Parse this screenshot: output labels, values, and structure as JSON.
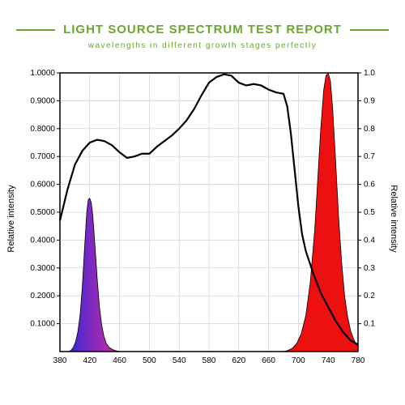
{
  "header": {
    "title": "LIGHT SOURCE SPECTRUM TEST REPORT",
    "subtitle": "wavelengths in different growth stages perfectly",
    "title_color": "#6aa62f",
    "subtitle_color": "#6aa62f",
    "rule_color": "#6aa62f",
    "title_fontsize": 15,
    "subtitle_fontsize": 10
  },
  "chart": {
    "type": "line+area",
    "background_color": "#ffffff",
    "border_color": "#000000",
    "grid_color": "#c7c7c7",
    "grid_width": 0.6,
    "axis_font_size": 10,
    "x": {
      "min": 380,
      "max": 780,
      "ticks": [
        380,
        420,
        460,
        500,
        540,
        580,
        620,
        660,
        700,
        740,
        780
      ]
    },
    "y_left": {
      "label": "Relative intensity",
      "min": 0,
      "max": 1,
      "ticks": [
        0.1,
        0.2,
        0.3,
        0.4,
        0.5,
        0.6,
        0.7,
        0.8,
        0.9,
        1.0
      ],
      "tick_labels": [
        "0.1000",
        "0.2000",
        "0.3000",
        "0.4000",
        "0.5000",
        "0.6000",
        "0.7000",
        "0.8000",
        "0.9000",
        "1.0000"
      ]
    },
    "y_right": {
      "label": "Relative intensity",
      "min": 0,
      "max": 1,
      "ticks": [
        0.1,
        0.2,
        0.3,
        0.4,
        0.5,
        0.6,
        0.7,
        0.8,
        0.9,
        1.0
      ],
      "tick_labels": [
        "0.1",
        "0.2",
        "0.3",
        "0.4",
        "0.5",
        "0.6",
        "0.7",
        "0.8",
        "0.9",
        "1.0"
      ]
    },
    "broad_curve": {
      "color": "#000000",
      "width": 2.2,
      "points": [
        [
          380,
          0.47
        ],
        [
          390,
          0.58
        ],
        [
          400,
          0.67
        ],
        [
          410,
          0.72
        ],
        [
          420,
          0.75
        ],
        [
          430,
          0.76
        ],
        [
          440,
          0.755
        ],
        [
          450,
          0.74
        ],
        [
          460,
          0.715
        ],
        [
          470,
          0.695
        ],
        [
          480,
          0.7
        ],
        [
          490,
          0.71
        ],
        [
          500,
          0.71
        ],
        [
          510,
          0.735
        ],
        [
          520,
          0.755
        ],
        [
          530,
          0.775
        ],
        [
          540,
          0.8
        ],
        [
          550,
          0.83
        ],
        [
          560,
          0.87
        ],
        [
          570,
          0.92
        ],
        [
          580,
          0.965
        ],
        [
          590,
          0.985
        ],
        [
          600,
          0.995
        ],
        [
          610,
          0.99
        ],
        [
          620,
          0.965
        ],
        [
          630,
          0.955
        ],
        [
          640,
          0.96
        ],
        [
          650,
          0.955
        ],
        [
          660,
          0.94
        ],
        [
          670,
          0.93
        ],
        [
          680,
          0.925
        ],
        [
          685,
          0.88
        ],
        [
          690,
          0.78
        ],
        [
          695,
          0.65
        ],
        [
          700,
          0.52
        ],
        [
          705,
          0.42
        ],
        [
          710,
          0.36
        ],
        [
          720,
          0.28
        ],
        [
          730,
          0.21
        ],
        [
          740,
          0.16
        ],
        [
          750,
          0.11
        ],
        [
          760,
          0.07
        ],
        [
          770,
          0.04
        ],
        [
          780,
          0.025
        ]
      ]
    },
    "violet_peak": {
      "fill_gradient": {
        "from": "#3a2ad6",
        "to": "#d42aa0",
        "angle": 90
      },
      "stroke": "#000000",
      "stroke_width": 0.8,
      "points": [
        [
          392,
          0.0
        ],
        [
          395,
          0.005
        ],
        [
          398,
          0.015
        ],
        [
          401,
          0.035
        ],
        [
          404,
          0.07
        ],
        [
          407,
          0.13
        ],
        [
          410,
          0.23
        ],
        [
          413,
          0.37
        ],
        [
          416,
          0.5
        ],
        [
          418,
          0.545
        ],
        [
          420,
          0.55
        ],
        [
          422,
          0.535
        ],
        [
          424,
          0.49
        ],
        [
          427,
          0.38
        ],
        [
          430,
          0.26
        ],
        [
          433,
          0.16
        ],
        [
          436,
          0.095
        ],
        [
          439,
          0.055
        ],
        [
          442,
          0.03
        ],
        [
          446,
          0.015
        ],
        [
          450,
          0.008
        ],
        [
          455,
          0.003
        ],
        [
          460,
          0.0
        ]
      ]
    },
    "red_peak": {
      "fill": "#ee1010",
      "stroke": "#000000",
      "stroke_width": 0.8,
      "points": [
        [
          680,
          0.0
        ],
        [
          686,
          0.004
        ],
        [
          692,
          0.012
        ],
        [
          698,
          0.03
        ],
        [
          704,
          0.065
        ],
        [
          710,
          0.13
        ],
        [
          716,
          0.25
        ],
        [
          722,
          0.44
        ],
        [
          726,
          0.62
        ],
        [
          730,
          0.8
        ],
        [
          734,
          0.94
        ],
        [
          737,
          0.99
        ],
        [
          740,
          1.0
        ],
        [
          743,
          0.97
        ],
        [
          746,
          0.87
        ],
        [
          750,
          0.68
        ],
        [
          754,
          0.48
        ],
        [
          758,
          0.32
        ],
        [
          762,
          0.2
        ],
        [
          766,
          0.125
        ],
        [
          770,
          0.075
        ],
        [
          774,
          0.045
        ],
        [
          778,
          0.025
        ],
        [
          780,
          0.02
        ]
      ]
    }
  }
}
